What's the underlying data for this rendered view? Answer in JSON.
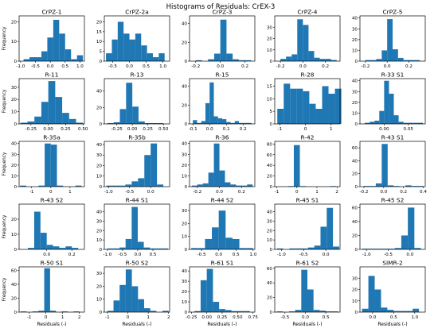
{
  "figure": {
    "title": "Histograms of Residuals: CrEX-3",
    "bar_color": "#1f77b4",
    "shared_xlabel": "Residuals (-)",
    "shared_ylabel": "Frequency"
  },
  "chart_data": [
    {
      "type": "bar",
      "title": "CrPZ-1",
      "xlim": [
        -1.05,
        1.15
      ],
      "ylim": [
        0,
        23
      ],
      "xticks": [
        -1.0,
        -0.5,
        0.0,
        0.5,
        1.0
      ],
      "xtick_labels": [
        "-1.0",
        "-0.5",
        "0.0",
        "0.5",
        "1.0"
      ],
      "yticks": [
        0,
        10,
        20
      ],
      "bin_edges": [
        -0.9,
        -0.7,
        -0.5,
        -0.3,
        -0.1,
        0.1,
        0.3,
        0.5,
        0.7,
        0.9,
        1.1
      ],
      "values": [
        1,
        2,
        2,
        5,
        12,
        21,
        14,
        6,
        1,
        3
      ]
    },
    {
      "type": "bar",
      "title": "CrPZ-2a",
      "xlim": [
        -0.75,
        1.2
      ],
      "ylim": [
        0,
        23
      ],
      "xticks": [
        -0.5,
        0.0,
        0.5,
        1.0
      ],
      "xtick_labels": [
        "-0.5",
        "0.0",
        "0.5",
        "1.0"
      ],
      "yticks": [
        0,
        5,
        10,
        15,
        20
      ],
      "bin_edges": [
        -0.7,
        -0.525,
        -0.35,
        -0.175,
        0.0,
        0.175,
        0.35,
        0.525,
        0.7,
        0.875,
        1.05
      ],
      "values": [
        4,
        11,
        20,
        14,
        11,
        14,
        8,
        4,
        2,
        4
      ]
    },
    {
      "type": "bar",
      "title": "CrPZ-3",
      "xlim": [
        -0.25,
        0.28
      ],
      "ylim": [
        0,
        48
      ],
      "xticks": [
        -0.2,
        0.0,
        0.2
      ],
      "xtick_labels": [
        "-0.2",
        "0.0",
        "0.2"
      ],
      "yticks": [
        0,
        20,
        40
      ],
      "bin_edges": [
        -0.2,
        -0.15,
        -0.1,
        -0.05,
        0.0,
        0.05,
        0.1,
        0.15,
        0.2,
        0.25
      ],
      "values": [
        1,
        0,
        2,
        8,
        44,
        8,
        2,
        1,
        1
      ]
    },
    {
      "type": "bar",
      "title": "CrPZ-4",
      "xlim": [
        -0.25,
        0.33
      ],
      "ylim": [
        0,
        40
      ],
      "xticks": [
        -0.2,
        0.0,
        0.2
      ],
      "xtick_labels": [
        "-0.2",
        "0.0",
        "0.2"
      ],
      "yticks": [
        0,
        10,
        20,
        30
      ],
      "bin_edges": [
        -0.2,
        -0.15,
        -0.1,
        -0.05,
        0.0,
        0.05,
        0.1,
        0.15,
        0.2,
        0.25,
        0.3
      ],
      "values": [
        2,
        4,
        6,
        37,
        32,
        9,
        3,
        2,
        2,
        1
      ]
    },
    {
      "type": "bar",
      "title": "CrPZ-5",
      "xlim": [
        -0.25,
        0.35
      ],
      "ylim": [
        0,
        42
      ],
      "xticks": [
        -0.2,
        0.0,
        0.2
      ],
      "xtick_labels": [
        "-0.2",
        "0.0",
        "0.2"
      ],
      "yticks": [
        0,
        10,
        20,
        30,
        40
      ],
      "bin_edges": [
        -0.2,
        -0.15,
        -0.1,
        -0.05,
        0.0,
        0.05,
        0.1,
        0.15,
        0.2,
        0.25,
        0.3
      ],
      "values": [
        1,
        1,
        2,
        10,
        39,
        11,
        3,
        1,
        1,
        1
      ]
    },
    {
      "type": "bar",
      "title": "R-11",
      "xlim": [
        -0.42,
        0.52
      ],
      "ylim": [
        0,
        37
      ],
      "xticks": [
        -0.25,
        0.0,
        0.25,
        0.5
      ],
      "xtick_labels": [
        "-0.25",
        "0.00",
        "0.25",
        "0.50"
      ],
      "yticks": [
        0,
        10,
        20,
        30
      ],
      "bin_edges": [
        -0.4,
        -0.3,
        -0.2,
        -0.1,
        0.0,
        0.1,
        0.2,
        0.3,
        0.4,
        0.5
      ],
      "values": [
        1,
        2,
        6,
        18,
        35,
        22,
        9,
        4,
        1
      ]
    },
    {
      "type": "bar",
      "title": "R-13",
      "xlim": [
        -0.45,
        0.6
      ],
      "ylim": [
        0,
        55
      ],
      "xticks": [
        -0.25,
        0.0,
        0.25,
        0.5
      ],
      "xtick_labels": [
        "-0.25",
        "0.00",
        "0.25",
        "0.50"
      ],
      "yticks": [
        0,
        20,
        40
      ],
      "bin_edges": [
        -0.4,
        -0.3,
        -0.2,
        -0.1,
        0.0,
        0.1,
        0.2,
        0.3,
        0.4,
        0.5
      ],
      "values": [
        1,
        2,
        18,
        50,
        21,
        3,
        1,
        1,
        1
      ]
    },
    {
      "type": "bar",
      "title": "R-15",
      "xlim": [
        -0.12,
        0.27
      ],
      "ylim": [
        0,
        48
      ],
      "xticks": [
        -0.1,
        0.0,
        0.1,
        0.2
      ],
      "xtick_labels": [
        "-0.1",
        "0.0",
        "0.1",
        "0.2"
      ],
      "yticks": [
        0,
        20,
        40
      ],
      "bin_edges": [
        -0.1,
        -0.075,
        -0.05,
        -0.025,
        0.0,
        0.025,
        0.05,
        0.075,
        0.1,
        0.125,
        0.15,
        0.175,
        0.2,
        0.225,
        0.25
      ],
      "values": [
        4,
        1,
        3,
        22,
        44,
        8,
        6,
        5,
        2,
        1,
        3,
        1,
        1,
        1
      ]
    },
    {
      "type": "bar",
      "title": "R-28",
      "xlim": [
        -1.2,
        1.35
      ],
      "ylim": [
        0,
        18
      ],
      "xticks": [
        -1,
        0,
        1
      ],
      "xtick_labels": [
        "-1",
        "0",
        "1"
      ],
      "yticks": [
        0,
        5,
        10,
        15
      ],
      "bin_edges": [
        -1.1,
        -0.85,
        -0.6,
        -0.35,
        -0.1,
        0.15,
        0.4,
        0.65,
        0.9,
        1.15,
        1.4
      ],
      "values": [
        6,
        16,
        14,
        14,
        13,
        8,
        6,
        15,
        12,
        14
      ]
    },
    {
      "type": "bar",
      "title": "R-33 S1",
      "xlim": [
        -0.05,
        0.085
      ],
      "ylim": [
        0,
        42
      ],
      "xticks": [
        0.0,
        0.05
      ],
      "xtick_labels": [
        "0.00",
        "0.05"
      ],
      "yticks": [
        0,
        10,
        20,
        30,
        40
      ],
      "bin_edges": [
        -0.04,
        -0.03,
        -0.02,
        -0.01,
        0.0,
        0.01,
        0.02,
        0.03,
        0.04,
        0.05,
        0.06,
        0.07,
        0.08
      ],
      "values": [
        1,
        2,
        3,
        12,
        40,
        28,
        8,
        2,
        1,
        1,
        1,
        1
      ]
    },
    {
      "type": "bar",
      "title": "R-35a",
      "xlim": [
        -1.65,
        1.75
      ],
      "ylim": [
        0,
        42
      ],
      "xticks": [
        -1,
        0,
        1
      ],
      "xtick_labels": [
        "-1",
        "0",
        "1"
      ],
      "yticks": [
        0,
        10,
        20,
        30,
        40
      ],
      "bin_edges": [
        -1.6,
        -1.28,
        -0.96,
        -0.64,
        -0.32,
        0.0,
        0.32,
        0.64,
        0.96,
        1.28,
        1.6
      ],
      "values": [
        1,
        0,
        0,
        1,
        40,
        39,
        1,
        0,
        0,
        1
      ]
    },
    {
      "type": "bar",
      "title": "R-35b",
      "xlim": [
        -1.1,
        0.45
      ],
      "ylim": [
        0,
        43
      ],
      "xticks": [
        -1.0,
        -0.5,
        0.0
      ],
      "xtick_labels": [
        "-1.0",
        "-0.5",
        "0.0"
      ],
      "yticks": [
        0,
        10,
        20,
        30,
        40
      ],
      "bin_edges": [
        -1.05,
        -0.9,
        -0.75,
        -0.6,
        -0.45,
        -0.3,
        -0.15,
        0.0,
        0.15,
        0.3
      ],
      "values": [
        1,
        1,
        1,
        2,
        5,
        8,
        30,
        41,
        2
      ]
    },
    {
      "type": "bar",
      "title": "R-36",
      "xlim": [
        -0.27,
        0.32
      ],
      "ylim": [
        0,
        42
      ],
      "xticks": [
        -0.2,
        0.0,
        0.2
      ],
      "xtick_labels": [
        "-0.2",
        "0.0",
        "0.2"
      ],
      "yticks": [
        0,
        10,
        20,
        30,
        40
      ],
      "bin_edges": [
        -0.25,
        -0.2,
        -0.15,
        -0.1,
        -0.05,
        0.0,
        0.05,
        0.1,
        0.15,
        0.2,
        0.25,
        0.3
      ],
      "values": [
        1,
        2,
        3,
        13,
        40,
        15,
        4,
        2,
        1,
        1,
        2
      ]
    },
    {
      "type": "bar",
      "title": "R-42",
      "xlim": [
        -1.1,
        2.15
      ],
      "ylim": [
        0,
        85
      ],
      "xticks": [
        -1,
        0,
        1,
        2
      ],
      "xtick_labels": [
        "-1",
        "0",
        "1",
        "2"
      ],
      "yticks": [
        0,
        20,
        40,
        60,
        80
      ],
      "bin_edges": [
        -1.05,
        -0.75,
        -0.45,
        -0.15,
        0.15,
        0.45,
        0.75,
        1.05,
        1.35,
        1.65,
        1.95
      ],
      "values": [
        0,
        0,
        1,
        78,
        1,
        0,
        0,
        0,
        0,
        1
      ]
    },
    {
      "type": "bar",
      "title": "R-43 S1",
      "xlim": [
        -0.24,
        0.42
      ],
      "ylim": [
        0,
        70
      ],
      "xticks": [
        -0.2,
        0.0,
        0.2,
        0.4
      ],
      "xtick_labels": [
        "-0.2",
        "0.0",
        "0.2",
        "0.4"
      ],
      "yticks": [
        0,
        20,
        40,
        60
      ],
      "bin_edges": [
        -0.2,
        -0.14,
        -0.08,
        -0.02,
        0.04,
        0.1,
        0.16,
        0.22,
        0.28,
        0.34,
        0.4
      ],
      "values": [
        1,
        1,
        5,
        66,
        2,
        1,
        0,
        2,
        1,
        1
      ]
    },
    {
      "type": "bar",
      "title": "R-43 S2",
      "xlim": [
        -0.22,
        0.3
      ],
      "ylim": [
        0,
        30
      ],
      "xticks": [
        0.0,
        0.2
      ],
      "xtick_labels": [
        "0.0",
        "0.2"
      ],
      "yticks": [
        0,
        10,
        20
      ],
      "bin_edges": [
        -0.15,
        -0.1,
        -0.05,
        0.0,
        0.05,
        0.1,
        0.15,
        0.2,
        0.25
      ],
      "values": [
        1,
        25,
        11,
        3,
        2,
        1,
        2,
        1
      ]
    },
    {
      "type": "bar",
      "title": "R-44 S1",
      "xlim": [
        -1.1,
        1.05
      ],
      "ylim": [
        0,
        48
      ],
      "xticks": [
        -1.0,
        -0.5,
        0.0,
        0.5
      ],
      "xtick_labels": [
        "-1.0",
        "-0.5",
        "0.0",
        "0.5"
      ],
      "yticks": [
        0,
        10,
        20,
        30,
        40
      ],
      "bin_edges": [
        -1.0,
        -0.8,
        -0.6,
        -0.4,
        -0.2,
        0.0,
        0.2,
        0.4,
        0.6,
        0.8,
        1.0
      ],
      "values": [
        1,
        1,
        2,
        11,
        45,
        8,
        2,
        1,
        1,
        1
      ]
    },
    {
      "type": "bar",
      "title": "R-44 S2",
      "xlim": [
        -0.85,
        1.05
      ],
      "ylim": [
        0,
        35
      ],
      "xticks": [
        -0.5,
        0.0,
        0.5,
        1.0
      ],
      "xtick_labels": [
        "-0.5",
        "0.0",
        "0.5",
        "1.0"
      ],
      "yticks": [
        0,
        10,
        20,
        30
      ],
      "bin_edges": [
        -0.8,
        -0.6,
        -0.4,
        -0.2,
        0.0,
        0.2,
        0.4,
        0.6,
        0.8,
        1.0
      ],
      "values": [
        1,
        1,
        8,
        17,
        30,
        9,
        8,
        1,
        1
      ]
    },
    {
      "type": "bar",
      "title": "R-45 S1",
      "xlim": [
        -1.15,
        0.32
      ],
      "ylim": [
        0,
        48
      ],
      "xticks": [
        -1.0,
        -0.5,
        0.0
      ],
      "xtick_labels": [
        "-1.0",
        "-0.5",
        "0.0"
      ],
      "yticks": [
        0,
        10,
        20,
        30,
        40
      ],
      "bin_edges": [
        -1.1,
        -0.96,
        -0.82,
        -0.68,
        -0.54,
        -0.4,
        -0.26,
        -0.12,
        0.02,
        0.16,
        0.3
      ],
      "values": [
        1,
        0,
        1,
        1,
        1,
        2,
        4,
        24,
        44,
        3
      ]
    },
    {
      "type": "bar",
      "title": "R-45 S2",
      "xlim": [
        -1.15,
        0.35
      ],
      "ylim": [
        0,
        65
      ],
      "xticks": [
        -1.0,
        -0.5,
        0.0
      ],
      "xtick_labels": [
        "-1.0",
        "-0.5",
        "0.0"
      ],
      "yticks": [
        0,
        20,
        40,
        60
      ],
      "bin_edges": [
        -1.1,
        -0.95,
        -0.8,
        -0.65,
        -0.5,
        -0.35,
        -0.2,
        -0.05,
        0.1,
        0.25
      ],
      "values": [
        1,
        1,
        1,
        1,
        1,
        2,
        20,
        60,
        2
      ]
    },
    {
      "type": "bar",
      "title": "R-50 S1",
      "xlim": [
        -1.6,
        2.3
      ],
      "ylim": [
        0,
        65
      ],
      "xticks": [
        -1,
        0,
        1,
        2
      ],
      "xtick_labels": [
        "-1",
        "0",
        "1",
        "2"
      ],
      "yticks": [
        0,
        20,
        40,
        60
      ],
      "bin_edges": [
        -1.5,
        -1.15,
        -0.8,
        -0.45,
        -0.1,
        0.25,
        0.6,
        0.95,
        1.3,
        1.65,
        2.0
      ],
      "values": [
        1,
        0,
        1,
        2,
        63,
        2,
        0,
        1,
        0,
        1
      ]
    },
    {
      "type": "bar",
      "title": "R-50 S2",
      "xlim": [
        -1.15,
        2.05
      ],
      "ylim": [
        0,
        35
      ],
      "xticks": [
        -1,
        0,
        1,
        2
      ],
      "xtick_labels": [
        "-1",
        "0",
        "1",
        "2"
      ],
      "yticks": [
        0,
        10,
        20,
        30
      ],
      "bin_edges": [
        -1.0,
        -0.7,
        -0.4,
        -0.1,
        0.2,
        0.5,
        0.8,
        1.1,
        1.4,
        1.7,
        2.0
      ],
      "values": [
        1,
        9,
        21,
        33,
        20,
        10,
        3,
        1,
        0,
        1
      ]
    },
    {
      "type": "bar",
      "title": "R-61 S1",
      "xlim": [
        -0.28,
        0.78
      ],
      "ylim": [
        0,
        44
      ],
      "xticks": [
        -0.25,
        0.0,
        0.25,
        0.5,
        0.75
      ],
      "xtick_labels": [
        "-0.25",
        "0.00",
        "0.25",
        "0.50",
        "0.75"
      ],
      "yticks": [
        0,
        10,
        20,
        30,
        40
      ],
      "bin_edges": [
        -0.2,
        -0.1,
        0.0,
        0.1,
        0.2,
        0.3,
        0.4,
        0.5,
        0.6,
        0.7
      ],
      "values": [
        1,
        31,
        42,
        10,
        3,
        2,
        1,
        1,
        1
      ]
    },
    {
      "type": "bar",
      "title": "R-61 S2",
      "xlim": [
        -0.75,
        0.85
      ],
      "ylim": [
        0,
        62
      ],
      "xticks": [
        -0.5,
        0.0,
        0.5
      ],
      "xtick_labels": [
        "-0.5",
        "0.0",
        "0.5"
      ],
      "yticks": [
        0,
        20,
        40,
        60
      ],
      "bin_edges": [
        -0.7,
        -0.55,
        -0.4,
        -0.25,
        -0.1,
        0.05,
        0.2,
        0.35,
        0.5,
        0.65,
        0.8
      ],
      "values": [
        1,
        0,
        1,
        3,
        58,
        31,
        3,
        2,
        1,
        1
      ]
    },
    {
      "type": "bar",
      "title": "SIMR-2",
      "xlim": [
        -0.3,
        1.25
      ],
      "ylim": [
        0,
        40
      ],
      "xticks": [
        0.0,
        0.5,
        1.0
      ],
      "xtick_labels": [
        "0.0",
        "0.5",
        "1.0"
      ],
      "yticks": [
        0,
        10,
        20,
        30
      ],
      "bin_edges": [
        -0.25,
        -0.1,
        0.05,
        0.2,
        0.35,
        0.5,
        0.65,
        0.8,
        0.95,
        1.1
      ],
      "values": [
        3,
        32,
        20,
        4,
        2,
        1,
        1,
        1,
        3
      ]
    }
  ]
}
